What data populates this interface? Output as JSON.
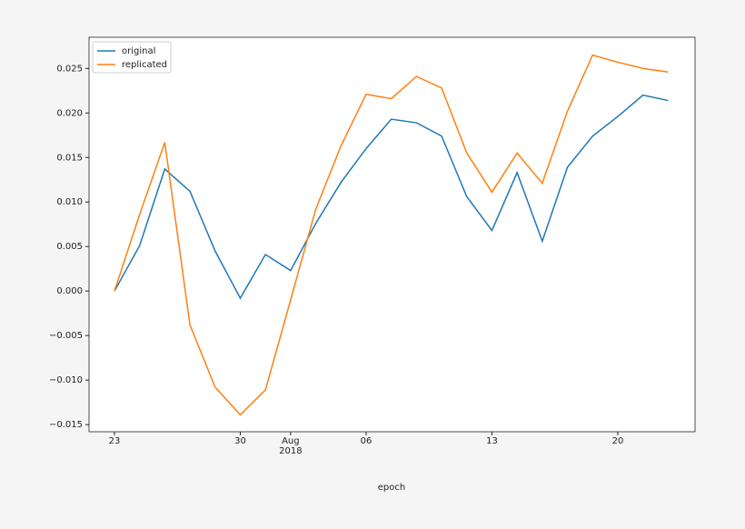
{
  "chart_data": {
    "type": "line",
    "x": [
      "2018-07-23",
      "2018-07-24",
      "2018-07-25",
      "2018-07-26",
      "2018-07-27",
      "2018-07-30",
      "2018-07-31",
      "2018-08-01",
      "2018-08-02",
      "2018-08-03",
      "2018-08-06",
      "2018-08-07",
      "2018-08-08",
      "2018-08-09",
      "2018-08-10",
      "2018-08-13",
      "2018-08-14",
      "2018-08-15",
      "2018-08-16",
      "2018-08-17",
      "2018-08-20",
      "2018-08-21",
      "2018-08-22"
    ],
    "xlabel": "epoch",
    "xticks": [
      {
        "value": "2018-07-23",
        "label": "23"
      },
      {
        "value": "2018-07-30",
        "label": "30"
      },
      {
        "value": "2018-08-01",
        "label": "Aug\n2018"
      },
      {
        "value": "2018-08-06",
        "label": "06"
      },
      {
        "value": "2018-08-13",
        "label": "13"
      },
      {
        "value": "2018-08-20",
        "label": "20"
      }
    ],
    "ylim": [
      -0.0158,
      0.0285
    ],
    "yticks": [
      {
        "value": -0.015,
        "label": "−0.015"
      },
      {
        "value": -0.01,
        "label": "−0.010"
      },
      {
        "value": -0.005,
        "label": "−0.005"
      },
      {
        "value": 0,
        "label": "0.000"
      },
      {
        "value": 0.005,
        "label": "0.005"
      },
      {
        "value": 0.01,
        "label": "0.010"
      },
      {
        "value": 0.015,
        "label": "0.015"
      },
      {
        "value": 0.02,
        "label": "0.020"
      },
      {
        "value": 0.025,
        "label": "0.025"
      }
    ],
    "legend": "upper left",
    "series": [
      {
        "name": "original",
        "color": "#1f77b4",
        "values": [
          0,
          0.0051,
          0.0137,
          0.0112,
          0.0045,
          -0.0008,
          0.0041,
          0.0023,
          0.0076,
          0.0122,
          0.016,
          0.0193,
          0.0189,
          0.0174,
          0.0106,
          0.0068,
          0.0133,
          0.0056,
          0.0139,
          0.0174,
          0.0196,
          0.022,
          0.0214
        ]
      },
      {
        "name": "replicated",
        "color": "#ff7f0e",
        "values": [
          0,
          0.0086,
          0.0167,
          -0.0038,
          -0.0108,
          -0.0139,
          -0.0111,
          -0.001,
          0.0092,
          0.0163,
          0.0221,
          0.0216,
          0.0241,
          0.0228,
          0.0155,
          0.0111,
          0.0155,
          0.0121,
          0.0202,
          0.0265,
          0.0257,
          0.025,
          0.0246
        ]
      }
    ]
  }
}
